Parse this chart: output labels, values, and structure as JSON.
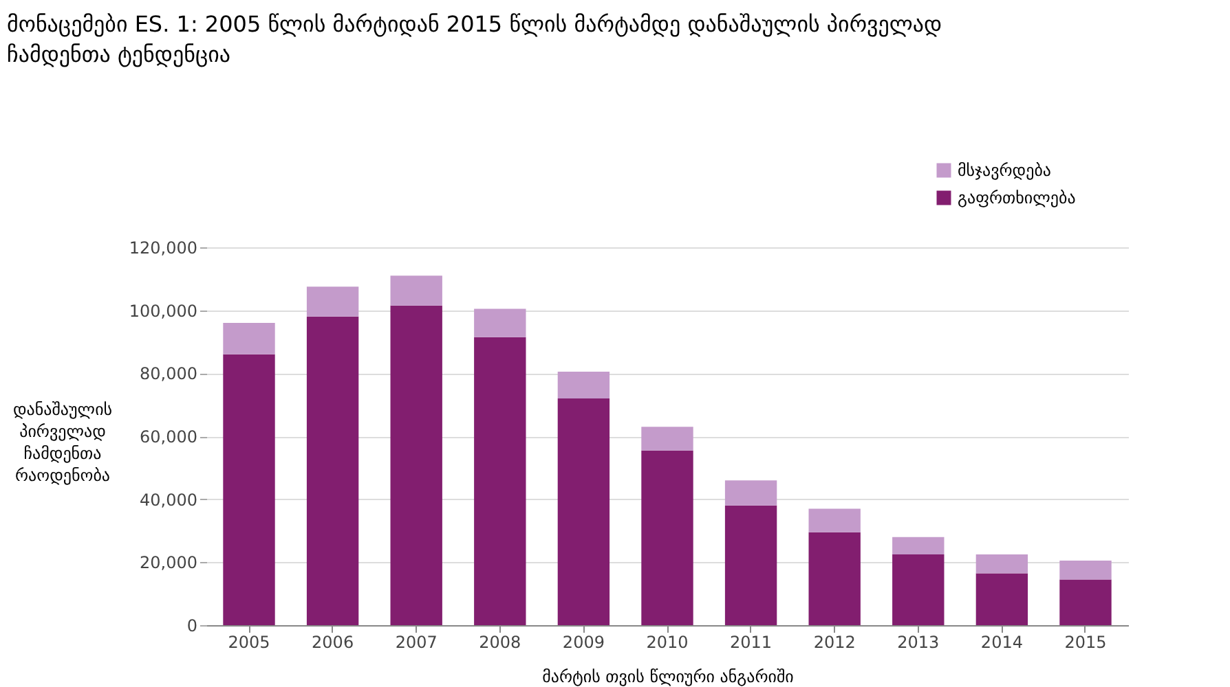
{
  "chart_data": {
    "type": "bar",
    "title": "მონაცემები ES. 1: 2005 წლის მარტიდან 2015 წლის მარტამდე დანაშაულის პირველად ჩამდენთა ტენდენცია",
    "xlabel": "მარტის თვის წლიური ანგარიში",
    "ylabel": "დანაშაულის პირველად ჩამდენთა რაოდენობა",
    "categories": [
      "2005",
      "2006",
      "2007",
      "2008",
      "2009",
      "2010",
      "2011",
      "2012",
      "2013",
      "2014",
      "2015"
    ],
    "stacked": true,
    "series": [
      {
        "name": "გაფრთხილება",
        "color": "#821e6f",
        "values": [
          86000,
          98000,
          101500,
          91500,
          72000,
          55500,
          38000,
          29500,
          22500,
          16500,
          14500
        ]
      },
      {
        "name": "მსჯავრდება",
        "color": "#c49bcb",
        "values": [
          10000,
          9500,
          9500,
          9000,
          8500,
          7500,
          8000,
          7500,
          5500,
          6000,
          6000
        ]
      }
    ],
    "ylim": [
      0,
      120000
    ],
    "yticks": [
      0,
      {
        "value": 20000,
        "label": "20,000"
      },
      {
        "value": 40000,
        "label": "40,000"
      },
      {
        "value": 60000,
        "label": "60,000"
      },
      {
        "value": 80000,
        "label": "80,000"
      },
      {
        "value": 100000,
        "label": "100,000"
      },
      {
        "value": 120000,
        "label": "120,000"
      }
    ],
    "grid": "y",
    "legend": "top right"
  }
}
